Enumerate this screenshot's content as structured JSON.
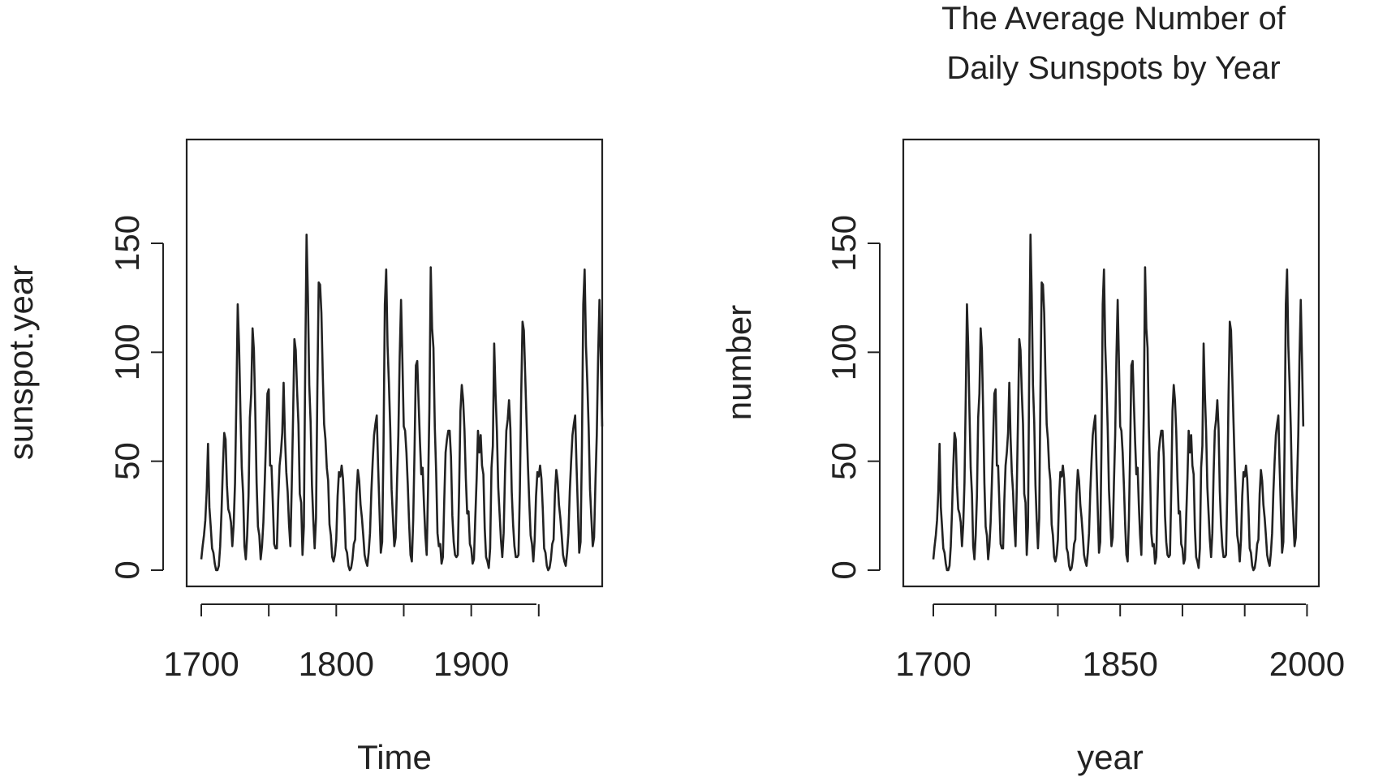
{
  "chart_data": [
    {
      "type": "line",
      "title": "",
      "xlabel": "Time",
      "ylabel": "sunspot.year",
      "xlim": [
        1700,
        1988
      ],
      "ylim": [
        0,
        190.2
      ],
      "x_ticks": [
        "1700",
        "1800",
        "1900"
      ],
      "y_ticks": [
        "0",
        "50",
        "100",
        "150"
      ],
      "grid": false,
      "series": [
        {
          "start_year": 1700,
          "values": [
            5,
            11,
            16,
            23,
            36,
            58,
            29,
            20,
            10,
            8,
            3,
            0,
            0,
            2,
            11,
            27,
            47,
            63,
            60,
            39,
            28,
            26,
            22,
            11,
            21,
            40,
            78,
            122,
            103,
            73,
            47,
            35,
            11,
            5,
            16,
            34,
            70,
            81,
            111,
            101,
            73,
            40,
            20,
            16,
            5,
            11,
            22,
            40,
            60,
            81,
            83,
            48,
            48,
            31,
            12,
            10,
            10,
            32,
            48,
            54,
            63,
            86,
            61,
            45,
            36,
            21,
            11,
            38,
            70,
            106,
            101,
            82,
            67,
            35,
            31,
            7,
            20,
            93,
            154,
            126,
            85,
            68,
            39,
            23,
            10,
            24,
            83,
            132,
            131,
            118,
            90,
            67,
            60,
            47,
            41,
            21,
            16,
            6,
            4,
            7,
            14,
            34,
            45,
            43,
            48,
            42,
            28,
            10,
            8,
            2,
            0,
            1,
            5,
            12,
            14,
            35,
            46,
            41,
            30,
            24,
            16,
            7,
            4,
            2,
            8,
            17,
            36,
            50,
            62,
            67,
            71,
            48,
            28,
            8,
            13,
            57,
            122,
            138,
            103,
            86,
            65,
            37,
            24,
            11,
            15,
            40,
            62,
            98,
            124,
            96,
            66,
            64,
            54,
            39,
            21,
            7,
            4,
            23,
            55,
            94,
            96,
            77,
            59,
            44,
            47,
            30,
            16,
            7,
            37,
            74,
            139,
            111,
            102,
            66,
            45,
            17,
            11,
            12,
            3,
            6,
            32,
            54,
            60,
            64,
            64,
            52,
            25,
            13,
            7,
            6,
            7,
            36,
            73,
            85,
            78,
            64,
            42,
            26,
            27,
            12,
            10,
            3,
            5,
            24,
            42,
            64,
            54,
            62,
            48,
            44,
            19,
            6,
            4,
            1,
            10,
            47,
            57,
            104,
            81,
            64,
            38,
            26,
            14,
            6,
            17,
            44,
            64,
            69,
            78,
            65,
            36,
            21,
            11,
            6,
            6,
            7,
            36,
            80,
            114,
            110,
            89,
            68,
            48,
            31,
            16,
            12,
            4,
            14,
            34,
            45,
            43,
            48,
            42,
            28,
            10,
            8,
            2,
            0,
            1,
            5,
            12,
            14,
            35,
            46,
            41,
            30,
            24,
            16,
            7,
            4,
            2,
            8,
            17,
            36,
            50,
            62,
            67,
            71,
            48,
            28,
            8,
            13,
            57,
            122,
            138,
            103,
            86,
            65,
            37,
            24,
            11,
            15,
            40,
            62,
            98,
            124,
            96,
            66
          ]
        }
      ]
    },
    {
      "type": "line",
      "title": "The Average Number of Daily Sunspots by Year",
      "title_lines": [
        "The Average Number of",
        "Daily Sunspots by Year"
      ],
      "xlabel": "year",
      "ylabel": "number",
      "xlim": [
        1700,
        1988
      ],
      "ylim": [
        0,
        190.2
      ],
      "x_ticks": [
        "1700",
        "1850",
        "2000"
      ],
      "y_ticks": [
        "0",
        "50",
        "100",
        "150"
      ],
      "grid": false,
      "series": [
        {
          "start_year": 1700,
          "values": "same as chart 1"
        }
      ]
    }
  ]
}
